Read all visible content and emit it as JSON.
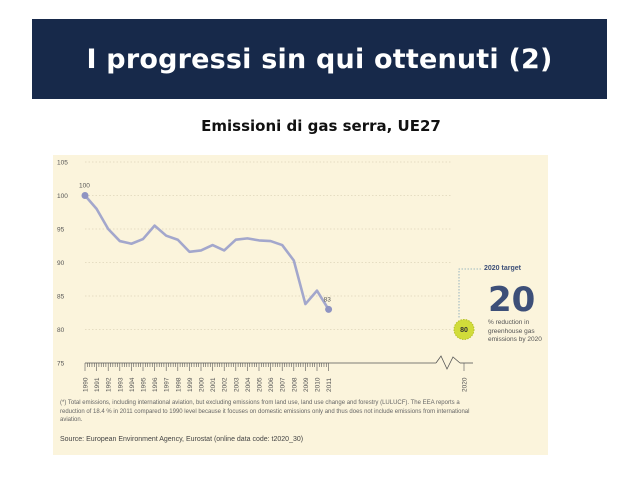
{
  "slide": {
    "title": "I progressi sin qui ottenuti (2)",
    "subtitle": "Emissioni di gas serra, UE27"
  },
  "chart_data": {
    "type": "line",
    "title": "",
    "xlabel": "",
    "ylabel": "",
    "x": [
      "1990",
      "1991",
      "1992",
      "1993",
      "1994",
      "1995",
      "1996",
      "1997",
      "1998",
      "1999",
      "2000",
      "2001",
      "2002",
      "2003",
      "2004",
      "2005",
      "2006",
      "2007",
      "2008",
      "2009",
      "2010",
      "2011"
    ],
    "series": [
      {
        "name": "",
        "values": [
          100,
          98,
          95,
          93.2,
          92.8,
          93.5,
          95.5,
          94,
          93.4,
          91.6,
          91.8,
          92.6,
          91.8,
          93.4,
          93.6,
          93.3,
          93.2,
          92.6,
          90.3,
          83.8,
          85.8,
          83
        ]
      }
    ],
    "extra_x": "2020",
    "target": {
      "year": "2020",
      "value": 80,
      "label": "80"
    },
    "labels": {
      "start": "100",
      "end": "83"
    },
    "ylim": [
      75,
      105
    ],
    "yticks": [
      "75",
      "80",
      "85",
      "90",
      "95",
      "100",
      "105"
    ],
    "grid": "dotted-horizontal",
    "colors": {
      "line": "#a3a7cc",
      "point": "#8f94c2",
      "target": "#d1dc3a",
      "target_ring": "#b5c026",
      "background": "#fbf4dc",
      "text": "#555555"
    }
  },
  "target_box": {
    "title": "2020 target",
    "value": "20",
    "description": "% reduction in greenhouse gas emissions by 2020"
  },
  "footnote": "(*) Total emissions, including international aviation, but excluding emissions from land use, land use change and forestry (LULUCF). The EEA reports a reduction of 18.4 % in 2011 compared to 1990 level because it focuses on domestic emissions only and thus does not include emissions from international aviation.",
  "source": "Source: European Environment Agency, Eurostat (online data code: t2020_30)"
}
